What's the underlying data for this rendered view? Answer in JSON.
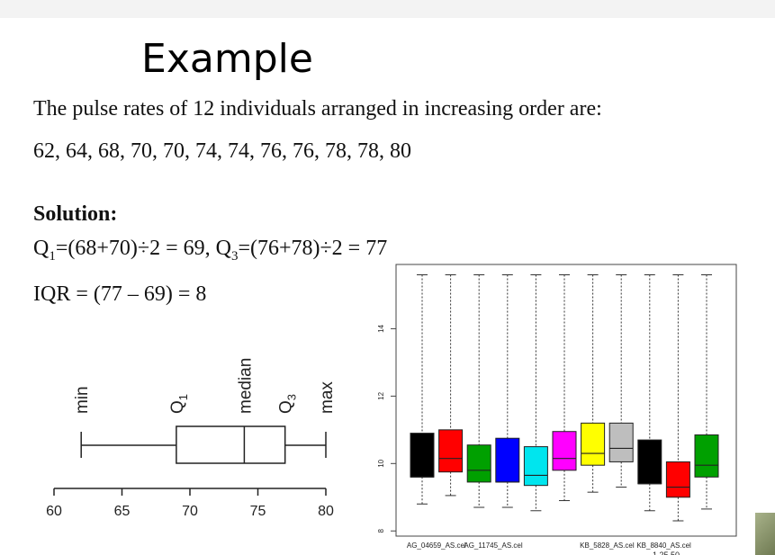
{
  "slide": {
    "title": "Example",
    "intro": "The pulse rates of 12 individuals arranged in increasing order are:",
    "values_text": "62, 64, 68, 70, 70, 74, 74, 76, 76, 78, 78, 80",
    "solution_label": "Solution:",
    "q1_parts": {
      "q": "Q",
      "sub": "1",
      "expr": "=(68+70)÷2 = 69, "
    },
    "q3_parts": {
      "q": "Q",
      "sub": "3",
      "expr": "=(76+78)÷2 = 77"
    },
    "iqr": "IQR = (77 – 69) = 8"
  },
  "chart_data": [
    {
      "type": "boxplot",
      "orientation": "horizontal",
      "stats": {
        "min": 62,
        "q1": 69,
        "median": 74,
        "q3": 77,
        "max": 80
      },
      "labels": {
        "min": "min",
        "q1": "Q",
        "q1_sub": "1",
        "median": "median",
        "q3": "Q",
        "q3_sub": "3",
        "max": "max"
      },
      "xlim": [
        60,
        80
      ],
      "ticks": [
        60,
        65,
        70,
        75,
        80
      ],
      "tick_labels": [
        "60",
        "65",
        "70",
        "75",
        "80"
      ]
    },
    {
      "type": "boxplot",
      "orientation": "vertical",
      "ylim": [
        7.9,
        15.8
      ],
      "yticks": [
        8,
        10,
        12,
        14
      ],
      "ytick_labels": [
        "8",
        "10",
        "12",
        "14"
      ],
      "xtick_labels": [
        "AG_04659_AS.cel",
        "AG_11745_AS.cel",
        "KB_5828_AS.cel",
        "KB_8840_AS.cel"
      ],
      "xtick_positions": [
        1.5,
        3.5,
        7.5,
        9.5
      ],
      "stray_label": "1 25 50",
      "boxes": [
        {
          "color": "#000000",
          "min": 8.8,
          "q1": 9.6,
          "median": 9.6,
          "q3": 10.9,
          "max": 15.6
        },
        {
          "color": "#ff0000",
          "min": 9.05,
          "q1": 9.75,
          "median": 10.15,
          "q3": 11.0,
          "max": 15.6
        },
        {
          "color": "#00a000",
          "min": 8.7,
          "q1": 9.45,
          "median": 9.8,
          "q3": 10.55,
          "max": 15.6
        },
        {
          "color": "#0000ff",
          "min": 8.7,
          "q1": 9.45,
          "median": 9.45,
          "q3": 10.75,
          "max": 15.6
        },
        {
          "color": "#00e5ee",
          "min": 8.6,
          "q1": 9.35,
          "median": 9.65,
          "q3": 10.5,
          "max": 15.6
        },
        {
          "color": "#ff00ff",
          "min": 8.9,
          "q1": 9.8,
          "median": 10.15,
          "q3": 10.95,
          "max": 15.6
        },
        {
          "color": "#ffff00",
          "min": 9.15,
          "q1": 9.95,
          "median": 10.3,
          "q3": 11.2,
          "max": 15.6
        },
        {
          "color": "#bebebe",
          "min": 9.3,
          "q1": 10.05,
          "median": 10.45,
          "q3": 11.2,
          "max": 15.6
        },
        {
          "color": "#000000",
          "min": 8.6,
          "q1": 9.4,
          "median": 9.4,
          "q3": 10.7,
          "max": 15.6
        },
        {
          "color": "#ff0000",
          "min": 8.3,
          "q1": 9.0,
          "median": 9.3,
          "q3": 10.05,
          "max": 15.6
        },
        {
          "color": "#00a000",
          "min": 8.65,
          "q1": 9.6,
          "median": 9.95,
          "q3": 10.85,
          "max": 15.6
        }
      ]
    }
  ]
}
